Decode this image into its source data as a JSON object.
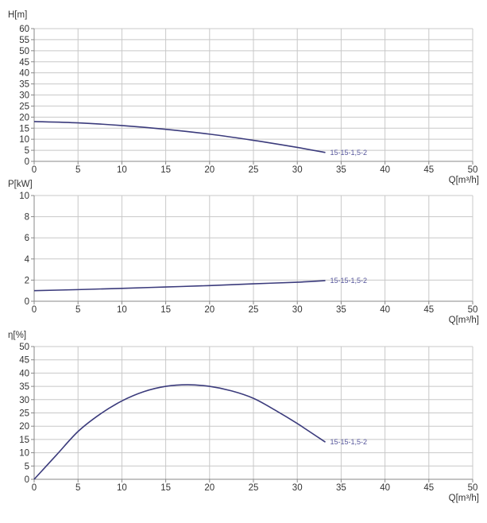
{
  "chart_data": [
    {
      "type": "line",
      "ylabel": "H[m]",
      "xlabel": "Q[m³/h]",
      "xlim": [
        0,
        50
      ],
      "ylim": [
        0,
        60
      ],
      "xticks": [
        0,
        5,
        10,
        15,
        20,
        25,
        30,
        35,
        40,
        45,
        50
      ],
      "yticks": [
        0,
        5,
        10,
        15,
        20,
        25,
        30,
        35,
        40,
        45,
        50,
        55,
        60
      ],
      "grid": true,
      "series": [
        {
          "name": "15-15-1,5-2",
          "x": [
            0,
            5,
            10,
            15,
            20,
            25,
            30,
            33.2
          ],
          "y": [
            18,
            17.4,
            16.2,
            14.5,
            12.3,
            9.5,
            6.3,
            4
          ]
        }
      ]
    },
    {
      "type": "line",
      "ylabel": "P[kW]",
      "xlabel": "Q[m³/h]",
      "xlim": [
        0,
        50
      ],
      "ylim": [
        0,
        10
      ],
      "xticks": [
        0,
        5,
        10,
        15,
        20,
        25,
        30,
        35,
        40,
        45,
        50
      ],
      "yticks": [
        0,
        2,
        4,
        6,
        8,
        10
      ],
      "grid": true,
      "series": [
        {
          "name": "15-15-1,5-2",
          "x": [
            0,
            5,
            10,
            15,
            20,
            25,
            30,
            33.2
          ],
          "y": [
            1.0,
            1.1,
            1.22,
            1.35,
            1.48,
            1.65,
            1.8,
            1.95
          ]
        }
      ]
    },
    {
      "type": "line",
      "ylabel": "η[%]",
      "xlabel": "Q[m³/h]",
      "xlim": [
        0,
        50
      ],
      "ylim": [
        0,
        50
      ],
      "xticks": [
        0,
        5,
        10,
        15,
        20,
        25,
        30,
        35,
        40,
        45,
        50
      ],
      "yticks": [
        0,
        5,
        10,
        15,
        20,
        25,
        30,
        35,
        40,
        45,
        50
      ],
      "grid": true,
      "series": [
        {
          "name": "15-15-1,5-2",
          "x": [
            0,
            2.5,
            5,
            7.5,
            10,
            12.5,
            15,
            17.5,
            20,
            22.5,
            25,
            27.5,
            30,
            33.2
          ],
          "y": [
            0,
            9,
            18,
            24.5,
            29.5,
            33,
            35,
            35.6,
            35,
            33.3,
            30.5,
            26,
            21,
            14
          ]
        }
      ]
    }
  ],
  "colors": {
    "curve": "#3b3b7c",
    "label": "#55559a",
    "grid": "#c8c8c8",
    "axis": "#888888"
  }
}
